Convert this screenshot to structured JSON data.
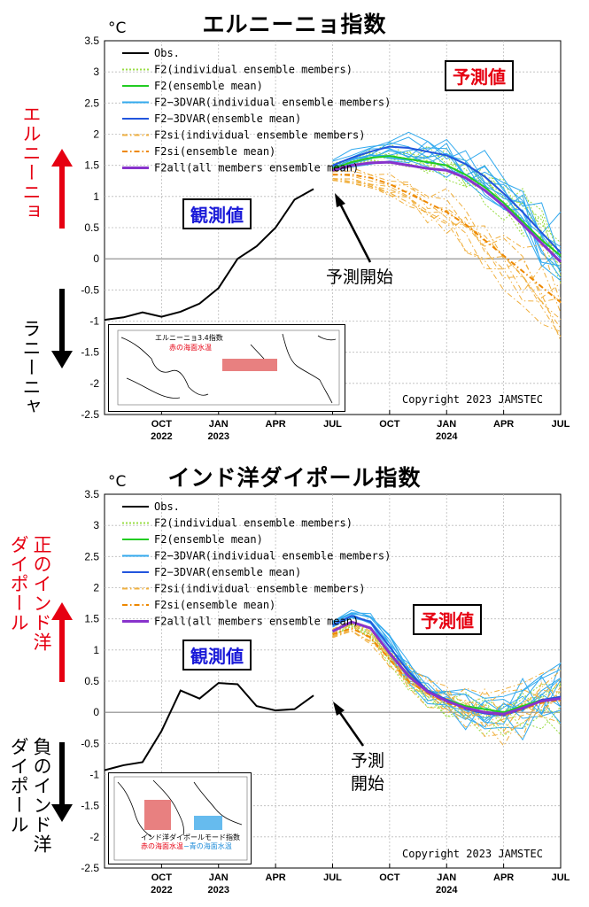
{
  "chart_data": [
    {
      "type": "line",
      "title": "エルニーニョ指数",
      "unit_label": "°C",
      "ylim": [
        -2.5,
        3.5
      ],
      "yticks": [
        "3.5",
        "3",
        "2.5",
        "2",
        "1.5",
        "1",
        "0.5",
        "0",
        "-0.5",
        "-1",
        "-1.5",
        "-2",
        "-2.5"
      ],
      "xticks": [
        {
          "label": "OCT",
          "year": "2022"
        },
        {
          "label": "JAN",
          "year": "2023"
        },
        {
          "label": "APR",
          "year": ""
        },
        {
          "label": "JUL",
          "year": ""
        },
        {
          "label": "OCT",
          "year": ""
        },
        {
          "label": "JAN",
          "year": "2024"
        },
        {
          "label": "APR",
          "year": ""
        },
        {
          "label": "JUL",
          "year": ""
        }
      ],
      "legend": [
        {
          "name": "Obs.",
          "color": "#000000",
          "style": "solid"
        },
        {
          "name": "F2(individual ensemble members)",
          "color": "#99dd44",
          "style": "dotted"
        },
        {
          "name": "F2(ensemble mean)",
          "color": "#22cc22",
          "style": "solid"
        },
        {
          "name": "F2−3DVAR(individual ensemble members)",
          "color": "#33aaee",
          "style": "solid"
        },
        {
          "name": "F2−3DVAR(ensemble mean)",
          "color": "#2255dd",
          "style": "solid"
        },
        {
          "name": "F2si(individual ensemble members)",
          "color": "#f0b040",
          "style": "dashdot"
        },
        {
          "name": "F2si(ensemble mean)",
          "color": "#ee8800",
          "style": "dashdot"
        },
        {
          "name": "F2all(all members ensemble mean)",
          "color": "#8833cc",
          "style": "solid"
        }
      ],
      "series": [
        {
          "name": "Obs.",
          "x_months": [
            0,
            1,
            2,
            3,
            4,
            5,
            6,
            7,
            8,
            9,
            10,
            11,
            12
          ],
          "values": [
            -0.98,
            -0.94,
            -0.86,
            -0.93,
            -0.85,
            -0.72,
            -0.47,
            0.0,
            0.2,
            0.5,
            0.95,
            1.12,
            null
          ]
        },
        {
          "name": "F2(ensemble mean)",
          "x_months": [
            12,
            13,
            14,
            15,
            16,
            17,
            18,
            19,
            20,
            21,
            22,
            23,
            24
          ],
          "values": [
            1.45,
            1.55,
            1.62,
            1.65,
            1.6,
            1.55,
            1.5,
            1.35,
            1.15,
            0.9,
            0.6,
            0.3,
            0.05
          ]
        },
        {
          "name": "F2−3DVAR(ensemble mean)",
          "x_months": [
            12,
            13,
            14,
            15,
            16,
            17,
            18,
            19,
            20,
            21,
            22,
            23,
            24
          ],
          "values": [
            1.5,
            1.62,
            1.72,
            1.8,
            1.78,
            1.72,
            1.66,
            1.52,
            1.32,
            1.05,
            0.75,
            0.42,
            0.1
          ]
        },
        {
          "name": "F2si(ensemble mean)",
          "x_months": [
            12,
            13,
            14,
            15,
            16,
            17,
            18,
            19,
            20,
            21,
            22,
            23,
            24
          ],
          "values": [
            1.35,
            1.35,
            1.3,
            1.2,
            1.05,
            0.9,
            0.75,
            0.55,
            0.3,
            0.05,
            -0.2,
            -0.45,
            -0.7
          ]
        },
        {
          "name": "F2all(all members ensemble mean)",
          "x_months": [
            12,
            13,
            14,
            15,
            16,
            17,
            18,
            19,
            20,
            21,
            22,
            23,
            24
          ],
          "values": [
            1.42,
            1.5,
            1.54,
            1.55,
            1.5,
            1.45,
            1.42,
            1.3,
            1.1,
            0.85,
            0.55,
            0.25,
            -0.05
          ]
        }
      ],
      "annotations": {
        "observed": "観測値",
        "forecast": "予測値",
        "forecast_start": [
          "予測開始"
        ],
        "upper_side": "エルニーニョ",
        "lower_side": "ラニーニャ",
        "copyright": "Copyright 2023 JAMSTEC",
        "inset_text_line1": "エルニーニョ3.4指数",
        "inset_text_line2": "赤の海面水温"
      }
    },
    {
      "type": "line",
      "title": "インド洋ダイポール指数",
      "unit_label": "°C",
      "ylim": [
        -2.5,
        3.5
      ],
      "yticks": [
        "3.5",
        "3",
        "2.5",
        "2",
        "1.5",
        "1",
        "0.5",
        "0",
        "-0.5",
        "-1",
        "-1.5",
        "-2",
        "-2.5"
      ],
      "xticks": [
        {
          "label": "OCT",
          "year": "2022"
        },
        {
          "label": "JAN",
          "year": "2023"
        },
        {
          "label": "APR",
          "year": ""
        },
        {
          "label": "JUL",
          "year": ""
        },
        {
          "label": "OCT",
          "year": ""
        },
        {
          "label": "JAN",
          "year": "2024"
        },
        {
          "label": "APR",
          "year": ""
        },
        {
          "label": "JUL",
          "year": ""
        }
      ],
      "legend": [
        {
          "name": "Obs.",
          "color": "#000000",
          "style": "solid"
        },
        {
          "name": "F2(individual ensemble members)",
          "color": "#99dd44",
          "style": "dotted"
        },
        {
          "name": "F2(ensemble mean)",
          "color": "#22cc22",
          "style": "solid"
        },
        {
          "name": "F2−3DVAR(individual ensemble members)",
          "color": "#33aaee",
          "style": "solid"
        },
        {
          "name": "F2−3DVAR(ensemble mean)",
          "color": "#2255dd",
          "style": "solid"
        },
        {
          "name": "F2si(individual ensemble members)",
          "color": "#f0b040",
          "style": "dashdot"
        },
        {
          "name": "F2si(ensemble mean)",
          "color": "#ee8800",
          "style": "dashdot"
        },
        {
          "name": "F2all(all members ensemble mean)",
          "color": "#8833cc",
          "style": "solid"
        }
      ],
      "series": [
        {
          "name": "Obs.",
          "x_months": [
            0,
            1,
            2,
            3,
            4,
            5,
            6,
            7,
            8,
            9,
            10,
            11
          ],
          "values": [
            -0.93,
            -0.85,
            -0.8,
            -0.3,
            0.35,
            0.22,
            0.47,
            0.45,
            0.1,
            0.03,
            0.05,
            0.27
          ]
        },
        {
          "name": "F2(ensemble mean)",
          "x_months": [
            12,
            13,
            14,
            15,
            16,
            17,
            18,
            19,
            20,
            21,
            22,
            23,
            24
          ],
          "values": [
            1.3,
            1.45,
            1.35,
            0.95,
            0.6,
            0.35,
            0.2,
            0.1,
            0.05,
            0.0,
            0.1,
            0.2,
            0.22
          ]
        },
        {
          "name": "F2−3DVAR(ensemble mean)",
          "x_months": [
            12,
            13,
            14,
            15,
            16,
            17,
            18,
            19,
            20,
            21,
            22,
            23,
            24
          ],
          "values": [
            1.4,
            1.55,
            1.45,
            1.05,
            0.65,
            0.35,
            0.2,
            0.05,
            -0.02,
            -0.05,
            0.05,
            0.2,
            0.25
          ]
        },
        {
          "name": "F2si(ensemble mean)",
          "x_months": [
            12,
            13,
            14,
            15,
            16,
            17,
            18,
            19,
            20,
            21,
            22,
            23,
            24
          ],
          "values": [
            1.25,
            1.35,
            1.2,
            0.85,
            0.5,
            0.3,
            0.15,
            0.05,
            0.0,
            -0.05,
            0.05,
            0.15,
            0.2
          ]
        },
        {
          "name": "F2all(all members ensemble mean)",
          "x_months": [
            12,
            13,
            14,
            15,
            16,
            17,
            18,
            19,
            20,
            21,
            22,
            23,
            24
          ],
          "values": [
            1.3,
            1.45,
            1.35,
            0.95,
            0.58,
            0.33,
            0.18,
            0.07,
            0.0,
            -0.03,
            0.07,
            0.18,
            0.22
          ]
        }
      ],
      "annotations": {
        "observed": "観測値",
        "forecast": "予測値",
        "forecast_start": [
          "予測",
          "開始"
        ],
        "upper_side": "正のインド洋ダイポール",
        "upper_side_lines": [
          "正のインド洋",
          "ダイポール"
        ],
        "lower_side_lines": [
          "負のインド洋",
          "ダイポール"
        ],
        "copyright": "Copyright 2023 JAMSTEC",
        "inset_text_line1": "インド洋ダイポールモード指数",
        "inset_text_line2a": "赤の海面水温",
        "inset_text_line2b": "−青の海面水温"
      }
    }
  ],
  "colors": {
    "obs": "#000000",
    "f2_member": "#99dd44",
    "f2_mean": "#22cc22",
    "dvar_member": "#33aaee",
    "dvar_mean": "#2255dd",
    "si_member": "#f0b040",
    "si_mean": "#ee8800",
    "all_mean": "#8833cc",
    "label_red": "#e60012",
    "label_blue": "#1a1ad8"
  }
}
